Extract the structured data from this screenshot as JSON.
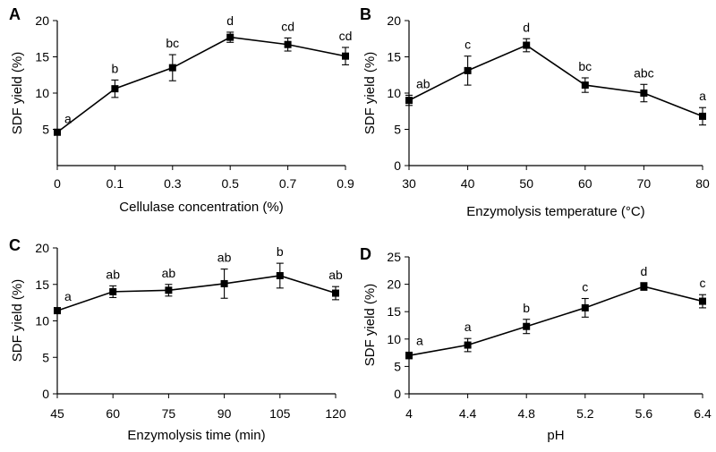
{
  "chart_data": [
    {
      "panel": "A",
      "type": "line",
      "categories": [
        "0",
        "0.1",
        "0.3",
        "0.5",
        "0.7",
        "0.9"
      ],
      "values": [
        4.6,
        10.6,
        13.5,
        17.7,
        16.7,
        15.1
      ],
      "errors": [
        0.3,
        1.2,
        1.8,
        0.7,
        0.9,
        1.2
      ],
      "significance": [
        "a",
        "b",
        "bc",
        "d",
        "cd",
        "cd"
      ],
      "xlabel": "Cellulase concentration (%)",
      "ylabel": "SDF yield (%)",
      "ylim": [
        0,
        20
      ],
      "yticks": [
        "5",
        "10",
        "15",
        "20"
      ],
      "grid": false
    },
    {
      "panel": "B",
      "type": "line",
      "categories": [
        "30",
        "40",
        "50",
        "60",
        "70",
        "80"
      ],
      "values": [
        9.0,
        13.1,
        16.6,
        11.1,
        10.0,
        6.8
      ],
      "errors": [
        0.7,
        2.0,
        0.9,
        1.0,
        1.2,
        1.2
      ],
      "significance": [
        "ab",
        "c",
        "d",
        "bc",
        "abc",
        "a"
      ],
      "xlabel": "Enzymolysis temperature (°C)",
      "ylabel": "SDF yield (%)",
      "ylim": [
        0,
        20
      ],
      "yticks": [
        "0",
        "5",
        "10",
        "15",
        "20"
      ],
      "grid": false
    },
    {
      "panel": "C",
      "type": "line",
      "categories": [
        "45",
        "60",
        "75",
        "90",
        "105",
        "120"
      ],
      "values": [
        11.4,
        14.0,
        14.2,
        15.1,
        16.2,
        13.8
      ],
      "errors": [
        0.4,
        0.8,
        0.8,
        2.0,
        1.7,
        0.9
      ],
      "significance": [
        "a",
        "ab",
        "ab",
        "ab",
        "b",
        "ab"
      ],
      "xlabel": "Enzymolysis time (min)",
      "ylabel": "SDF yield (%)",
      "ylim": [
        0,
        20
      ],
      "yticks": [
        "0",
        "5",
        "10",
        "15",
        "20"
      ],
      "grid": false
    },
    {
      "panel": "D",
      "type": "line",
      "categories": [
        "4",
        "4.4",
        "4.8",
        "5.2",
        "5.6",
        "6.4"
      ],
      "values": [
        7.0,
        8.9,
        12.3,
        15.7,
        19.6,
        16.9
      ],
      "errors": [
        0.6,
        1.2,
        1.3,
        1.7,
        0.7,
        1.2
      ],
      "significance": [
        "a",
        "a",
        "b",
        "c",
        "d",
        "c"
      ],
      "xlabel": "pH",
      "ylabel": "SDF yield (%)",
      "ylim": [
        0,
        25
      ],
      "yticks": [
        "0",
        "5",
        "10",
        "15",
        "20",
        "25"
      ],
      "grid": false
    }
  ]
}
